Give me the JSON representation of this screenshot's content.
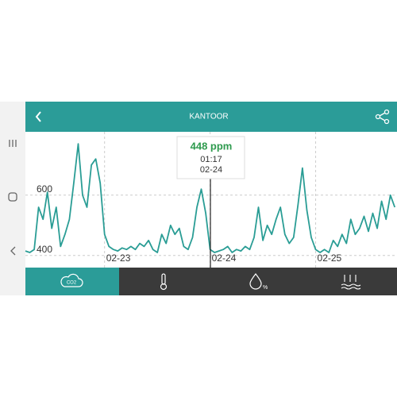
{
  "header": {
    "title": "KANTOOR"
  },
  "chart_data": {
    "type": "line",
    "x": [
      -18,
      -17,
      -16,
      -15,
      -14,
      -13,
      -12,
      -11,
      -10,
      -9,
      -8,
      -7,
      -6,
      -5,
      -4,
      -3,
      -2,
      -1,
      0,
      1,
      2,
      3,
      4,
      5,
      6,
      7,
      8,
      9,
      10,
      11,
      12,
      13,
      14,
      15,
      16,
      17,
      18,
      19,
      20,
      21,
      22,
      23,
      24,
      25,
      26,
      27,
      28,
      29,
      30,
      31,
      32,
      33,
      34,
      35,
      36,
      37,
      38,
      39,
      40,
      41,
      42,
      43,
      44,
      45,
      46,
      47,
      48,
      49,
      50,
      51,
      52,
      53,
      54,
      55,
      56,
      57,
      58,
      59,
      60,
      61,
      62,
      63,
      64,
      65,
      66
    ],
    "series": [
      {
        "color": "#2a9d95",
        "values": [
          415,
          410,
          420,
          560,
          520,
          610,
          490,
          560,
          430,
          470,
          520,
          640,
          770,
          600,
          560,
          700,
          720,
          640,
          470,
          430,
          420,
          415,
          425,
          420,
          430,
          420,
          440,
          430,
          450,
          420,
          410,
          470,
          440,
          500,
          470,
          490,
          430,
          420,
          460,
          560,
          620,
          540,
          420,
          410,
          415,
          420,
          430,
          410,
          420,
          415,
          430,
          420,
          460,
          560,
          450,
          500,
          470,
          520,
          560,
          470,
          440,
          460,
          570,
          690,
          550,
          460,
          420,
          410,
          420,
          410,
          450,
          430,
          470,
          440,
          520,
          470,
          490,
          530,
          480,
          540,
          490,
          580,
          520,
          600,
          560
        ]
      }
    ],
    "xlim": [
      -18,
      66.5
    ],
    "xticks": [
      {
        "value": 0,
        "label": "02-23"
      },
      {
        "value": 24,
        "label": "02-24"
      },
      {
        "value": 48,
        "label": "02-25"
      }
    ],
    "ylim": [
      360,
      810
    ],
    "yticks": [
      400,
      600
    ],
    "grid": true
  },
  "tooltip": {
    "value": "448 ppm",
    "time": "01:17",
    "date": "02-24"
  },
  "tabs": {
    "co2": "CO2",
    "humidity": "%"
  }
}
